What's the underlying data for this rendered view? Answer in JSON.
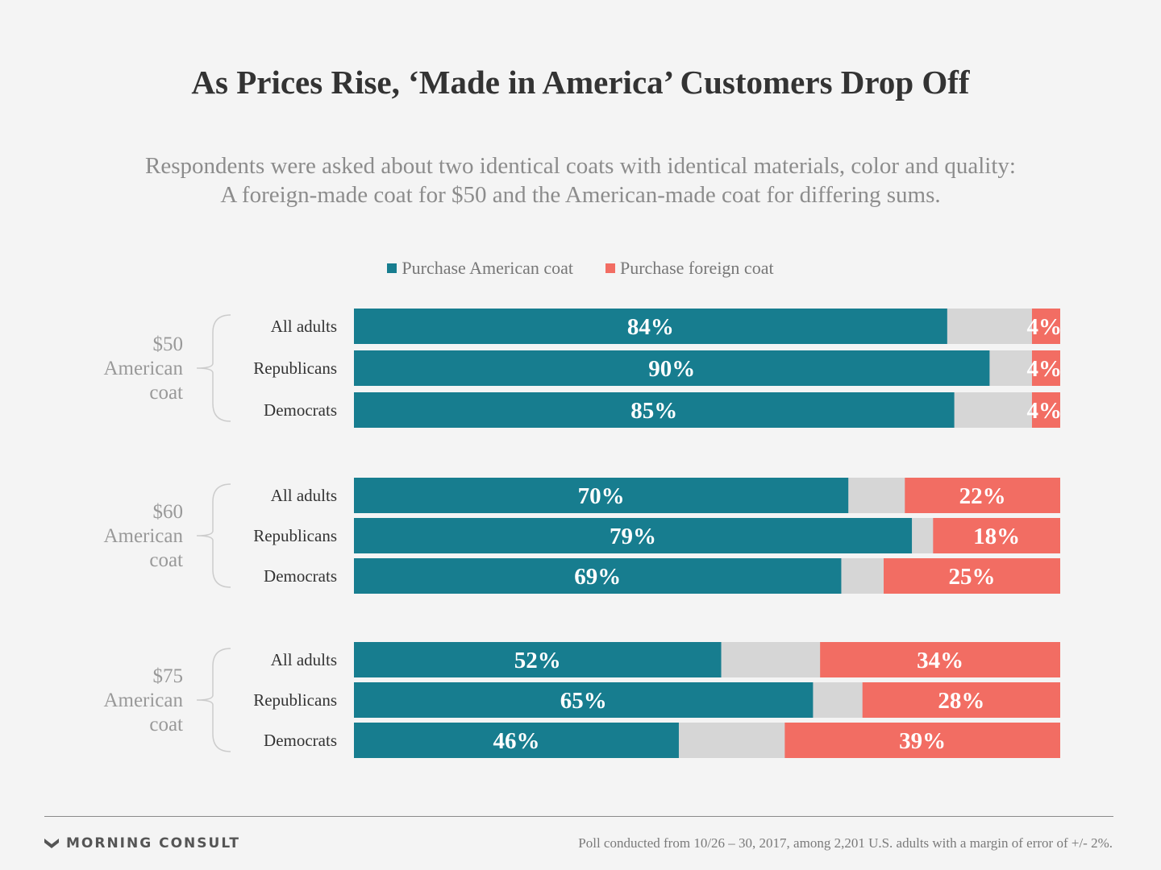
{
  "title": "As Prices Rise, ‘Made in America’ Customers Drop Off",
  "subtitle": {
    "line1": "Respondents were asked about two identical coats with identical materials, color and quality:",
    "line2": "A foreign-made coat for $50 and the American-made coat for differing sums."
  },
  "legend": {
    "american": "Purchase American coat",
    "foreign": "Purchase foreign coat"
  },
  "colors": {
    "american": "#177d8f",
    "foreign": "#f26d63",
    "neither": "#d6d6d6"
  },
  "footer": {
    "brand": "MORNING CONSULT",
    "note": "Poll conducted from 10/26 – 30, 2017, among 2,201 U.S. adults with a margin of error of +/- 2%."
  },
  "chart_data": {
    "type": "bar",
    "orientation": "horizontal",
    "stacked": true,
    "xlim": [
      0,
      100
    ],
    "groups": [
      {
        "label": [
          "$50",
          "American",
          "coat"
        ],
        "rows": [
          {
            "category": "All adults",
            "american": 84,
            "foreign": 4
          },
          {
            "category": "Republicans",
            "american": 90,
            "foreign": 4
          },
          {
            "category": "Democrats",
            "american": 85,
            "foreign": 4
          }
        ]
      },
      {
        "label": [
          "$60",
          "American",
          "coat"
        ],
        "rows": [
          {
            "category": "All adults",
            "american": 70,
            "foreign": 22
          },
          {
            "category": "Republicans",
            "american": 79,
            "foreign": 18
          },
          {
            "category": "Democrats",
            "american": 69,
            "foreign": 25
          }
        ]
      },
      {
        "label": [
          "$75",
          "American",
          "coat"
        ],
        "rows": [
          {
            "category": "All adults",
            "american": 52,
            "foreign": 34
          },
          {
            "category": "Republicans",
            "american": 65,
            "foreign": 28
          },
          {
            "category": "Democrats",
            "american": 46,
            "foreign": 39
          }
        ]
      }
    ]
  }
}
